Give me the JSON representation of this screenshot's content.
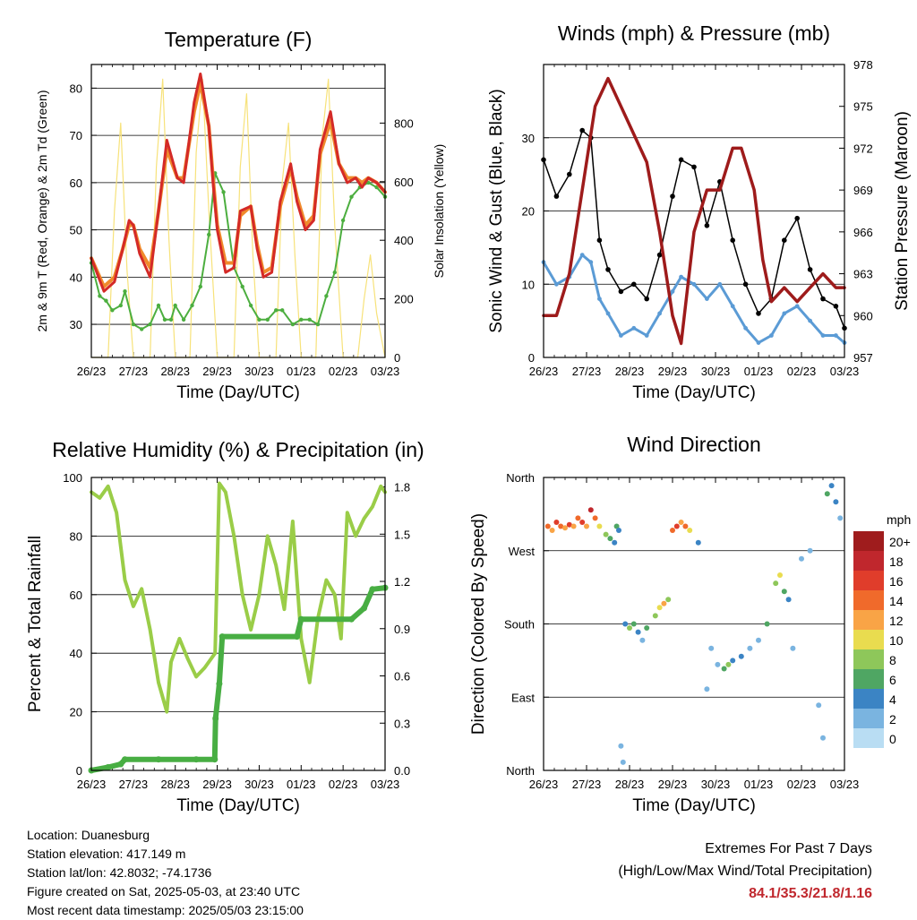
{
  "footer": {
    "location": "Location: Duanesburg",
    "elevation": "Station elevation: 417.149 m",
    "latlon": "Station lat/lon: 42.8032; -74.1736",
    "created": "Figure created on Sat, 2025-05-03, at 23:40 UTC",
    "recent": "Most recent data timestamp: 2025/05/03 23:15:00",
    "extremes_title": "Extremes For Past 7 Days",
    "extremes_subtitle": "(High/Low/Max Wind/Total Precipitation)",
    "extremes_values": "84.1/35.3/21.8/1.16"
  },
  "colors": {
    "temp2m": "#d42a27",
    "temp9m": "#f08a2c",
    "dewpoint": "#4cae3f",
    "solar": "#f7e27a",
    "wind": "#5b9bd5",
    "gust": "#000000",
    "pressure": "#9e1b1b",
    "rh": "#9acd48",
    "precip": "#48ae43"
  },
  "chart_data": [
    {
      "id": "temperature",
      "type": "line",
      "title": "Temperature (F)",
      "xlabel": "Time (Day/UTC)",
      "ylabel": "2m & 9m T (Red, Orange) & 2m Td (Green)",
      "ylabel_right": "Solar Insolation (Yellow)",
      "xticks": [
        "26/23",
        "27/23",
        "28/23",
        "29/23",
        "30/23",
        "01/23",
        "02/23",
        "03/23"
      ],
      "yticks": [
        "30",
        "40",
        "50",
        "60",
        "70",
        "80"
      ],
      "yticks_right": [
        "0",
        "200",
        "400",
        "600",
        "800"
      ],
      "ylim": [
        23,
        85
      ],
      "ylim_right": [
        0,
        1000
      ],
      "xlim": [
        0,
        7
      ],
      "grid": true,
      "series": [
        {
          "key": "temp2m",
          "x": [
            0,
            0.3,
            0.55,
            0.75,
            0.9,
            1.0,
            1.15,
            1.4,
            1.6,
            1.8,
            2.05,
            2.2,
            2.45,
            2.6,
            2.8,
            2.9,
            3.0,
            3.2,
            3.4,
            3.55,
            3.8,
            3.95,
            4.1,
            4.3,
            4.5,
            4.75,
            4.9,
            5.1,
            5.3,
            5.45,
            5.7,
            5.9,
            6.1,
            6.3,
            6.45,
            6.6,
            6.8,
            7.0
          ],
          "values": [
            44,
            37,
            39,
            46,
            52,
            51,
            45,
            40,
            54,
            69,
            61,
            60,
            77,
            83,
            72,
            60,
            50,
            41,
            42,
            54,
            55,
            46,
            40,
            41,
            56,
            64,
            56,
            50,
            52,
            67,
            75,
            64,
            60,
            61,
            59,
            61,
            60,
            58
          ]
        },
        {
          "key": "temp9m",
          "x": [
            0,
            0.3,
            0.55,
            0.75,
            0.9,
            1.0,
            1.15,
            1.4,
            1.6,
            1.8,
            2.05,
            2.2,
            2.45,
            2.6,
            2.8,
            2.9,
            3.0,
            3.2,
            3.4,
            3.55,
            3.8,
            3.95,
            4.1,
            4.3,
            4.5,
            4.75,
            4.9,
            5.1,
            5.3,
            5.45,
            5.7,
            5.9,
            6.1,
            6.3,
            6.45,
            6.6,
            6.8,
            7.0
          ],
          "values": [
            44,
            38,
            40,
            46,
            51,
            51,
            46,
            42,
            54,
            67,
            61,
            61,
            75,
            81,
            72,
            61,
            51,
            43,
            43,
            53,
            55,
            47,
            41,
            42,
            55,
            63,
            57,
            51,
            53,
            66,
            73,
            64,
            61,
            61,
            60,
            61,
            60,
            58
          ]
        },
        {
          "key": "dewpoint",
          "x": [
            0,
            0.2,
            0.35,
            0.5,
            0.7,
            0.8,
            1.0,
            1.2,
            1.4,
            1.6,
            1.75,
            1.9,
            2.0,
            2.2,
            2.4,
            2.6,
            2.8,
            2.95,
            3.15,
            3.4,
            3.6,
            3.8,
            4.0,
            4.2,
            4.4,
            4.55,
            4.8,
            5.0,
            5.2,
            5.4,
            5.6,
            5.8,
            6.0,
            6.2,
            6.4,
            6.6,
            6.8,
            7.0
          ],
          "values": [
            43,
            36,
            35,
            33,
            34,
            37,
            30,
            29,
            30,
            34,
            31,
            31,
            34,
            31,
            34,
            38,
            49,
            62,
            58,
            42,
            38,
            34,
            31,
            31,
            33,
            33,
            30,
            31,
            31,
            30,
            36,
            41,
            52,
            57,
            59,
            60,
            59,
            57
          ]
        },
        {
          "key": "solar",
          "x": [
            0,
            0.4,
            0.55,
            0.7,
            0.85,
            1.0,
            1.4,
            1.55,
            1.7,
            1.85,
            2.0,
            2.35,
            2.5,
            2.65,
            2.8,
            3.0,
            3.4,
            3.55,
            3.7,
            3.85,
            4.0,
            4.4,
            4.55,
            4.7,
            4.85,
            5.0,
            5.35,
            5.5,
            5.65,
            5.8,
            6.0,
            6.35,
            6.5,
            6.65,
            6.8,
            7.0
          ],
          "values": [
            0,
            0,
            500,
            800,
            300,
            0,
            0,
            650,
            950,
            400,
            0,
            0,
            700,
            950,
            500,
            0,
            0,
            650,
            900,
            350,
            0,
            0,
            600,
            800,
            350,
            0,
            0,
            750,
            950,
            450,
            0,
            0,
            200,
            350,
            150,
            0
          ]
        }
      ]
    },
    {
      "id": "winds",
      "type": "scatter",
      "title": "Winds (mph) & Pressure (mb)",
      "xlabel": "Time (Day/UTC)",
      "ylabel": "Sonic Wind & Gust (Blue, Black)",
      "ylabel_right": "Station Pressure (Maroon)",
      "xticks": [
        "26/23",
        "27/23",
        "28/23",
        "29/23",
        "30/23",
        "01/23",
        "02/23",
        "03/23"
      ],
      "yticks": [
        "0",
        "10",
        "20",
        "30"
      ],
      "yticks_right": [
        "957",
        "960",
        "963",
        "966",
        "969",
        "972",
        "975",
        "978"
      ],
      "ylim": [
        0,
        40
      ],
      "ylim_right": [
        957,
        978
      ],
      "xlim": [
        0,
        7
      ],
      "grid": true,
      "series": [
        {
          "key": "gust",
          "x": [
            0,
            0.3,
            0.6,
            0.9,
            1.1,
            1.3,
            1.5,
            1.8,
            2.1,
            2.4,
            2.7,
            3.0,
            3.2,
            3.5,
            3.8,
            4.1,
            4.4,
            4.7,
            5.0,
            5.3,
            5.6,
            5.9,
            6.2,
            6.5,
            6.8,
            7.0
          ],
          "values": [
            27,
            22,
            25,
            31,
            30,
            16,
            12,
            9,
            10,
            8,
            14,
            22,
            27,
            26,
            18,
            24,
            16,
            10,
            6,
            8,
            16,
            19,
            12,
            8,
            7,
            4
          ]
        },
        {
          "key": "wind",
          "x": [
            0,
            0.3,
            0.6,
            0.9,
            1.1,
            1.3,
            1.5,
            1.8,
            2.1,
            2.4,
            2.7,
            3.0,
            3.2,
            3.5,
            3.8,
            4.1,
            4.4,
            4.7,
            5.0,
            5.3,
            5.6,
            5.9,
            6.2,
            6.5,
            6.8,
            7.0
          ],
          "values": [
            13,
            10,
            11,
            14,
            13,
            8,
            6,
            3,
            4,
            3,
            6,
            9,
            11,
            10,
            8,
            10,
            7,
            4,
            2,
            3,
            6,
            7,
            5,
            3,
            3,
            2
          ]
        },
        {
          "key": "pressure",
          "x": [
            0,
            0.3,
            0.6,
            0.9,
            1.2,
            1.5,
            1.8,
            2.1,
            2.4,
            2.7,
            3.0,
            3.2,
            3.5,
            3.8,
            4.1,
            4.4,
            4.6,
            4.9,
            5.1,
            5.3,
            5.6,
            5.9,
            6.2,
            6.5,
            6.8,
            7.0
          ],
          "values": [
            960,
            960,
            963,
            969,
            975,
            977,
            975,
            973,
            971,
            966,
            960,
            958,
            966,
            969,
            969,
            972,
            972,
            969,
            964,
            961,
            962,
            961,
            962,
            963,
            962,
            962
          ]
        }
      ]
    },
    {
      "id": "humidity",
      "type": "line",
      "title": "Relative Humidity (%) & Precipitation (in)",
      "xlabel": "Time (Day/UTC)",
      "ylabel": "Percent & Total Rainfall",
      "xticks": [
        "26/23",
        "27/23",
        "28/23",
        "29/23",
        "30/23",
        "01/23",
        "02/23",
        "03/23"
      ],
      "yticks": [
        "0",
        "20",
        "40",
        "60",
        "80",
        "100"
      ],
      "yticks_right": [
        "0.0",
        "0.3",
        "0.6",
        "0.9",
        "1.2",
        "1.5",
        "1.8"
      ],
      "ylim": [
        0,
        100
      ],
      "ylim_right": [
        0,
        1.86
      ],
      "xlim": [
        0,
        7
      ],
      "grid": true,
      "series": [
        {
          "key": "rh",
          "x": [
            0,
            0.2,
            0.4,
            0.6,
            0.8,
            1.0,
            1.2,
            1.4,
            1.6,
            1.8,
            1.9,
            2.1,
            2.3,
            2.5,
            2.7,
            2.95,
            3.05,
            3.2,
            3.4,
            3.6,
            3.8,
            4.0,
            4.2,
            4.4,
            4.6,
            4.8,
            5.0,
            5.2,
            5.4,
            5.6,
            5.8,
            5.95,
            6.1,
            6.3,
            6.5,
            6.7,
            6.9,
            7.0
          ],
          "values": [
            95,
            93,
            97,
            88,
            65,
            56,
            62,
            48,
            30,
            20,
            37,
            45,
            38,
            32,
            35,
            40,
            98,
            95,
            80,
            60,
            48,
            60,
            80,
            70,
            55,
            85,
            45,
            30,
            52,
            65,
            60,
            45,
            88,
            80,
            86,
            90,
            97,
            95
          ]
        },
        {
          "key": "precip",
          "x": [
            0,
            0.4,
            0.7,
            0.8,
            1.6,
            2.5,
            2.94,
            2.96,
            3.05,
            3.12,
            4.9,
            5.0,
            6.2,
            6.5,
            6.7,
            7.0
          ],
          "values": [
            0,
            0.02,
            0.04,
            0.07,
            0.07,
            0.07,
            0.07,
            0.33,
            0.55,
            0.85,
            0.85,
            0.96,
            0.96,
            1.03,
            1.15,
            1.16
          ]
        }
      ]
    },
    {
      "id": "direction",
      "type": "scatter",
      "title": "Wind Direction",
      "xlabel": "Time (Day/UTC)",
      "ylabel": "Direction (Colored By Speed)",
      "xticks": [
        "26/23",
        "27/23",
        "28/23",
        "29/23",
        "30/23",
        "01/23",
        "02/23",
        "03/23"
      ],
      "yticks": [
        "North",
        "East",
        "South",
        "West",
        "North"
      ],
      "ylim": [
        0,
        360
      ],
      "xlim": [
        0,
        7
      ],
      "grid": true,
      "legend": {
        "title": "mph",
        "labels": [
          "20+",
          "18",
          "16",
          "14",
          "12",
          "10",
          "8",
          "6",
          "4",
          "2",
          "0"
        ],
        "colors": [
          "#9f1c1d",
          "#c0272d",
          "#e03d2b",
          "#f06a2b",
          "#f9a446",
          "#e9dc4f",
          "#8ec75a",
          "#4fa663",
          "#3b84c4",
          "#7ab4e0",
          "#b9ddf3"
        ]
      },
      "points": [
        [
          0.1,
          300,
          14
        ],
        [
          0.2,
          295,
          12
        ],
        [
          0.3,
          305,
          16
        ],
        [
          0.4,
          300,
          15
        ],
        [
          0.5,
          298,
          13
        ],
        [
          0.6,
          302,
          17
        ],
        [
          0.7,
          300,
          12
        ],
        [
          0.8,
          310,
          14
        ],
        [
          0.9,
          305,
          16
        ],
        [
          1.0,
          300,
          13
        ],
        [
          1.1,
          320,
          18
        ],
        [
          1.2,
          310,
          15
        ],
        [
          1.3,
          300,
          11
        ],
        [
          1.45,
          290,
          8
        ],
        [
          1.55,
          285,
          6
        ],
        [
          1.65,
          280,
          4
        ],
        [
          1.7,
          300,
          7
        ],
        [
          1.75,
          295,
          5
        ],
        [
          1.8,
          30,
          3
        ],
        [
          1.85,
          10,
          2
        ],
        [
          1.9,
          180,
          5
        ],
        [
          2.0,
          175,
          8
        ],
        [
          2.1,
          180,
          7
        ],
        [
          2.2,
          170,
          4
        ],
        [
          2.3,
          160,
          3
        ],
        [
          2.4,
          175,
          6
        ],
        [
          2.6,
          190,
          9
        ],
        [
          2.7,
          200,
          10
        ],
        [
          2.8,
          205,
          12
        ],
        [
          2.9,
          210,
          8
        ],
        [
          3.0,
          295,
          14
        ],
        [
          3.1,
          300,
          16
        ],
        [
          3.2,
          305,
          13
        ],
        [
          3.3,
          300,
          15
        ],
        [
          3.4,
          295,
          11
        ],
        [
          3.6,
          280,
          5
        ],
        [
          3.8,
          100,
          3
        ],
        [
          3.9,
          150,
          2
        ],
        [
          4.05,
          130,
          3
        ],
        [
          4.2,
          125,
          6
        ],
        [
          4.3,
          130,
          8
        ],
        [
          4.4,
          135,
          5
        ],
        [
          4.6,
          140,
          4
        ],
        [
          4.8,
          150,
          3
        ],
        [
          5.0,
          160,
          2
        ],
        [
          5.2,
          180,
          6
        ],
        [
          5.4,
          230,
          9
        ],
        [
          5.5,
          240,
          10
        ],
        [
          5.6,
          220,
          6
        ],
        [
          5.7,
          210,
          4
        ],
        [
          5.8,
          150,
          2
        ],
        [
          6.0,
          260,
          3
        ],
        [
          6.2,
          270,
          2
        ],
        [
          6.4,
          80,
          2
        ],
        [
          6.5,
          40,
          3
        ],
        [
          6.6,
          340,
          6
        ],
        [
          6.7,
          350,
          5
        ],
        [
          6.8,
          330,
          4
        ],
        [
          6.9,
          310,
          3
        ]
      ]
    }
  ]
}
